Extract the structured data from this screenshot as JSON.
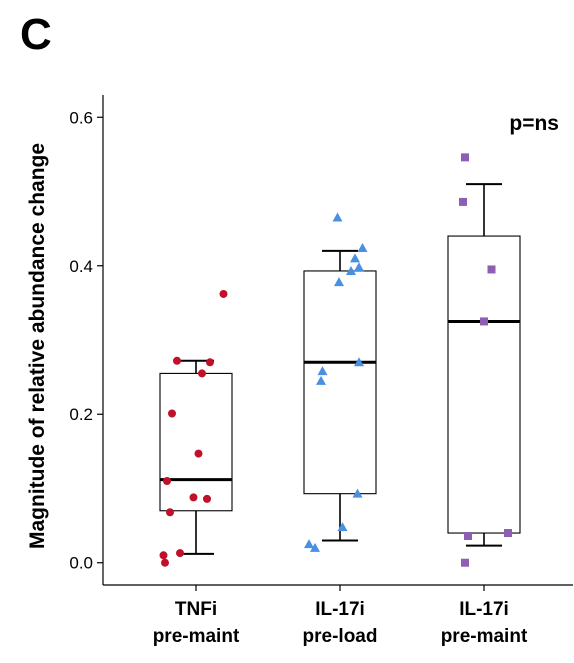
{
  "panel_label": "C",
  "chart_data": {
    "type": "box",
    "title": "",
    "ylabel": "Magnitude of relative abundance change",
    "xlabel": "",
    "ylim": [
      -0.03,
      0.63
    ],
    "yticks": [
      0.0,
      0.2,
      0.4,
      0.6
    ],
    "ytick_labels": [
      "0.0",
      "0.2",
      "0.4",
      "0.6"
    ],
    "annotation": "p=ns",
    "grid": false,
    "groups": [
      {
        "label_line1": "TNFi",
        "label_line2": "pre-maint",
        "color": "#c0102a",
        "marker": "circle",
        "box": {
          "whisker_low": 0.012,
          "q1": 0.07,
          "median": 0.112,
          "q3": 0.255,
          "whisker_high": 0.272
        },
        "points": [
          {
            "jitter": 0.55,
            "y": 0.362
          },
          {
            "jitter": -0.38,
            "y": 0.272
          },
          {
            "jitter": 0.28,
            "y": 0.27
          },
          {
            "jitter": 0.12,
            "y": 0.255
          },
          {
            "jitter": -0.48,
            "y": 0.201
          },
          {
            "jitter": 0.05,
            "y": 0.147
          },
          {
            "jitter": -0.58,
            "y": 0.11
          },
          {
            "jitter": -0.05,
            "y": 0.088
          },
          {
            "jitter": 0.22,
            "y": 0.086
          },
          {
            "jitter": -0.52,
            "y": 0.068
          },
          {
            "jitter": -0.65,
            "y": 0.01
          },
          {
            "jitter": -0.32,
            "y": 0.013
          },
          {
            "jitter": -0.62,
            "y": 0.0
          }
        ]
      },
      {
        "label_line1": "IL-17i",
        "label_line2": "pre-load",
        "color": "#4a90e2",
        "marker": "triangle",
        "box": {
          "whisker_low": 0.03,
          "q1": 0.093,
          "median": 0.27,
          "q3": 0.393,
          "whisker_high": 0.42
        },
        "points": [
          {
            "jitter": -0.05,
            "y": 0.465
          },
          {
            "jitter": 0.45,
            "y": 0.424
          },
          {
            "jitter": 0.3,
            "y": 0.41
          },
          {
            "jitter": 0.38,
            "y": 0.398
          },
          {
            "jitter": 0.22,
            "y": 0.393
          },
          {
            "jitter": -0.02,
            "y": 0.378
          },
          {
            "jitter": 0.38,
            "y": 0.27
          },
          {
            "jitter": -0.35,
            "y": 0.258
          },
          {
            "jitter": -0.38,
            "y": 0.245
          },
          {
            "jitter": 0.35,
            "y": 0.093
          },
          {
            "jitter": 0.05,
            "y": 0.048
          },
          {
            "jitter": -0.62,
            "y": 0.025
          },
          {
            "jitter": -0.5,
            "y": 0.02
          }
        ]
      },
      {
        "label_line1": "IL-17i",
        "label_line2": "pre-maint",
        "color": "#8e5fb0",
        "marker": "square",
        "box": {
          "whisker_low": 0.023,
          "q1": 0.04,
          "median": 0.325,
          "q3": 0.44,
          "whisker_high": 0.51
        },
        "points": [
          {
            "jitter": -0.38,
            "y": 0.546
          },
          {
            "jitter": -0.42,
            "y": 0.486
          },
          {
            "jitter": 0.15,
            "y": 0.395
          },
          {
            "jitter": 0.0,
            "y": 0.325
          },
          {
            "jitter": 0.48,
            "y": 0.04
          },
          {
            "jitter": -0.32,
            "y": 0.036
          },
          {
            "jitter": -0.38,
            "y": 0.0
          }
        ]
      }
    ]
  }
}
